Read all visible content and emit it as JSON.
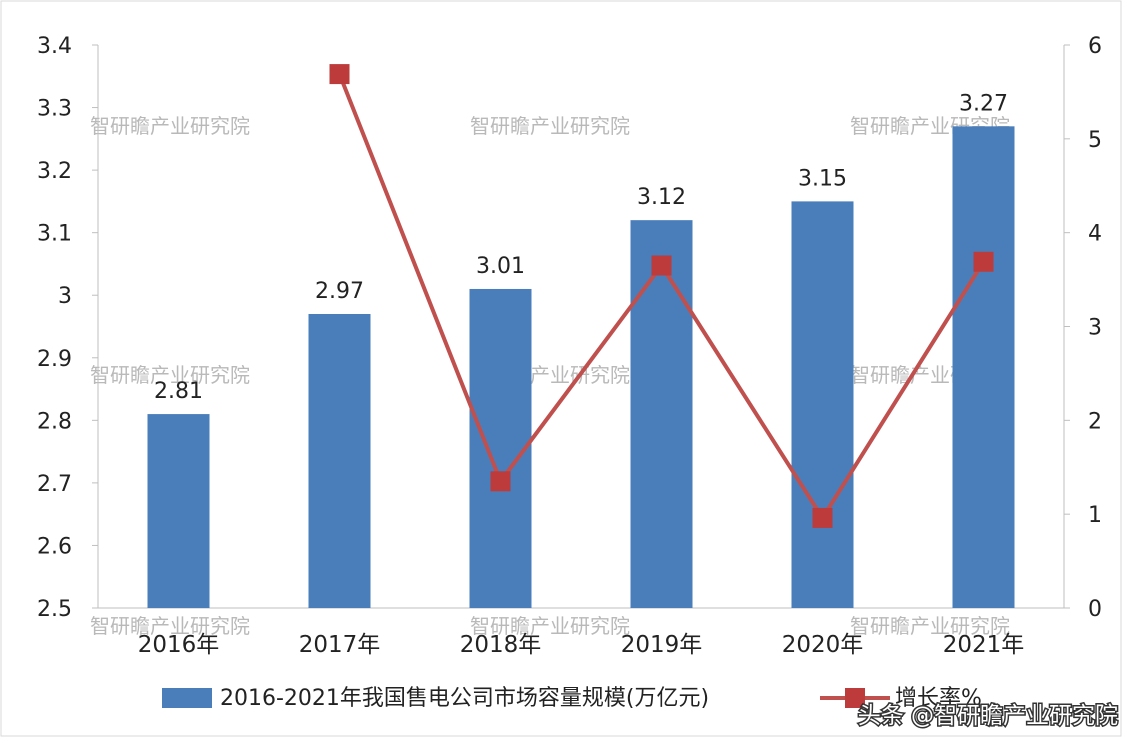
{
  "chart_data": {
    "type": "bar+line",
    "categories": [
      "2016年",
      "2017年",
      "2018年",
      "2019年",
      "2020年",
      "2021年"
    ],
    "series": [
      {
        "name": "2016-2021年我国售电公司市场容量规模(万亿元)",
        "type": "bar",
        "axis": "left",
        "values": [
          2.81,
          2.97,
          3.01,
          3.12,
          3.15,
          3.27
        ],
        "data_labels": [
          "2.81",
          "2.97",
          "3.01",
          "3.12",
          "3.15",
          "3.27"
        ]
      },
      {
        "name": "增长率%",
        "type": "line",
        "axis": "right",
        "values": [
          null,
          5.69,
          1.35,
          3.65,
          0.96,
          3.69
        ]
      }
    ],
    "y_left": {
      "min": 2.5,
      "max": 3.4,
      "ticks": [
        "2.5",
        "2.6",
        "2.7",
        "2.8",
        "2.9",
        "3",
        "3.1",
        "3.2",
        "3.3",
        "3.4"
      ]
    },
    "y_right": {
      "min": 0,
      "max": 6,
      "ticks": [
        "0",
        "1",
        "2",
        "3",
        "4",
        "5",
        "6"
      ]
    },
    "grid": false,
    "legend_position": "bottom",
    "colors": {
      "bar": "#4a7ebb",
      "line": "#c0504d",
      "marker": "#be3b3b"
    }
  },
  "watermark_text": "智研瞻产业研究院",
  "footer_mark": "头条 @智研瞻产业研究院"
}
